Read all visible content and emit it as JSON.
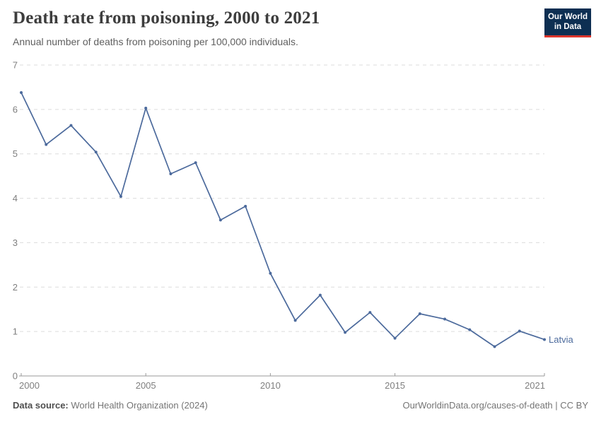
{
  "header": {
    "logo": {
      "line1": "Our World",
      "line2": "in Data"
    }
  },
  "chart_data": {
    "type": "line",
    "title": "Death rate from poisoning, 2000 to 2021",
    "subtitle": "Annual number of deaths from poisoning per 100,000 individuals.",
    "x": [
      2000,
      2001,
      2002,
      2003,
      2004,
      2005,
      2006,
      2007,
      2008,
      2009,
      2010,
      2011,
      2012,
      2013,
      2014,
      2015,
      2016,
      2017,
      2018,
      2019,
      2020,
      2021
    ],
    "series": [
      {
        "name": "Latvia",
        "color": "#4C6A9C",
        "values": [
          6.38,
          5.21,
          5.64,
          5.04,
          4.04,
          6.03,
          4.55,
          4.8,
          3.51,
          3.82,
          2.31,
          1.25,
          1.82,
          0.98,
          1.43,
          0.85,
          1.4,
          1.28,
          1.04,
          0.66,
          1.01,
          0.82
        ]
      }
    ],
    "xlim": [
      2000,
      2021
    ],
    "ylim": [
      0,
      7
    ],
    "xticks": [
      2000,
      2005,
      2010,
      2015,
      2021
    ],
    "yticks": [
      0,
      1,
      2,
      3,
      4,
      5,
      6,
      7
    ],
    "grid": "horizontal-dashed",
    "legend": "line-end-label"
  },
  "footer": {
    "source_label": "Data source:",
    "source_value": "World Health Organization (2024)",
    "license": "OurWorldinData.org/causes-of-death | CC BY"
  },
  "colors": {
    "line": "#4C6A9C",
    "logo_bg": "#0D2F52",
    "logo_accent": "#DC352C",
    "grid": "#DCDCDC",
    "axis": "#9A9A9A",
    "tick_text": "#7F7F7F"
  }
}
